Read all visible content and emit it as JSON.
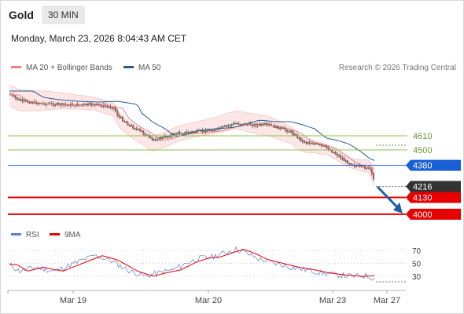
{
  "header": {
    "instrument": "Gold",
    "timeframe": "30 MIN",
    "datetime": "Monday, March 23, 2026 8:04:43 AM CET"
  },
  "price_panel": {
    "legend": [
      {
        "label": "MA 20 + Bollinger Bands",
        "color": "#f08080"
      },
      {
        "label": "MA 50",
        "color": "#2e5b8f"
      }
    ],
    "credit": "Research © 2026 Trading Central",
    "levels": [
      {
        "label": "4610",
        "value": 4610,
        "kind": "resistance",
        "color": "#8bc34a"
      },
      {
        "label": "4500",
        "value": 4500,
        "kind": "resistance",
        "color": "#8bc34a"
      },
      {
        "label": "4380",
        "value": 4380,
        "kind": "pivot",
        "color": "#1a5fd6"
      },
      {
        "label": "4216",
        "value": 4216,
        "kind": "last",
        "color": "#333333"
      },
      {
        "label": "4130",
        "value": 4130,
        "kind": "target",
        "color": "#e60000"
      },
      {
        "label": "4000",
        "value": 4000,
        "kind": "target",
        "color": "#e60000"
      }
    ]
  },
  "rsi_panel": {
    "legend": [
      {
        "label": "RSI",
        "color": "#5b7bd5"
      },
      {
        "label": "9MA",
        "color": "#e60000"
      }
    ],
    "levels": [
      "70",
      "50",
      "30"
    ]
  },
  "x_axis": {
    "labels": [
      "Mar 19",
      "Mar 20",
      "Mar 23",
      "Mar 27"
    ]
  },
  "colors": {
    "up_candle": "#5cb85c",
    "down_candle": "#d9534f",
    "bollinger_fill": "#fde3e3",
    "ma20": "#f08080",
    "ma50": "#2e5b8f",
    "forecast_arrow": "#1f5fa8"
  }
}
